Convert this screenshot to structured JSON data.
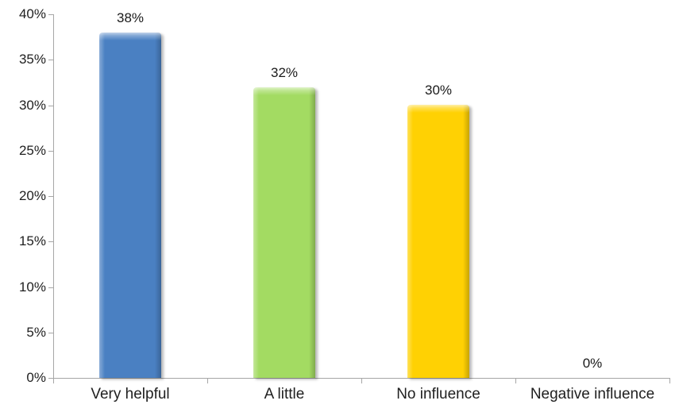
{
  "chart_data": {
    "type": "bar",
    "title": "",
    "categories": [
      "Very helpful",
      "A little",
      "No influence",
      "Negative influence"
    ],
    "values": [
      38,
      32,
      30,
      0
    ],
    "data_labels": [
      "38%",
      "32%",
      "30%",
      "0%"
    ],
    "bar_colors": [
      "#4A80C2",
      "#A3DB62",
      "#FFD103",
      null
    ],
    "ylim": [
      0,
      40
    ],
    "yticks": [
      0,
      5,
      10,
      15,
      20,
      25,
      30,
      35,
      40
    ],
    "ytick_labels": [
      "0%",
      "5%",
      "10%",
      "15%",
      "20%",
      "25%",
      "30%",
      "35%",
      "40%"
    ],
    "grid": false,
    "legend": false,
    "axis_color": "#A6A6A6",
    "text_color": "#1F1F1F",
    "background": "#FFFFFF"
  }
}
